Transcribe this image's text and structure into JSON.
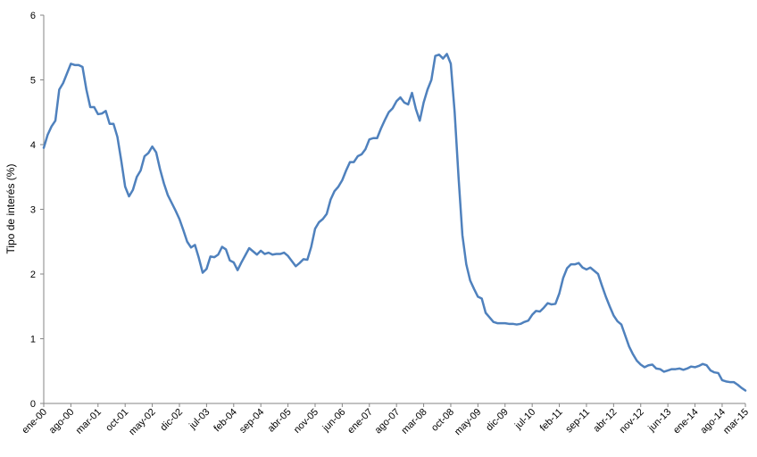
{
  "chart_data": {
    "type": "line",
    "title": "",
    "xlabel": "",
    "ylabel": "Tipo de interés (%)",
    "ylim": [
      0,
      6
    ],
    "y_ticks": [
      "0",
      "1",
      "2",
      "3",
      "4",
      "5",
      "6"
    ],
    "grid": false,
    "legend": "none",
    "line_color": "#4F81BD",
    "x_tick_labels": [
      "ene-00",
      "ago-00",
      "mar-01",
      "oct-01",
      "may-02",
      "dic-02",
      "jul-03",
      "feb-04",
      "sep-04",
      "abr-05",
      "nov-05",
      "jun-06",
      "ene-07",
      "ago-07",
      "mar-08",
      "oct-08",
      "may-09",
      "dic-09",
      "jul-10",
      "feb-11",
      "sep-11",
      "abr-12",
      "nov-12",
      "jun-13",
      "ene-14",
      "ago-14",
      "mar-15"
    ],
    "series": [
      {
        "values": [
          3.95,
          4.15,
          4.28,
          4.37,
          4.85,
          4.95,
          5.1,
          5.25,
          5.23,
          5.23,
          5.2,
          4.85,
          4.58,
          4.58,
          4.47,
          4.48,
          4.52,
          4.32,
          4.32,
          4.12,
          3.75,
          3.35,
          3.2,
          3.3,
          3.5,
          3.6,
          3.82,
          3.87,
          3.97,
          3.88,
          3.62,
          3.4,
          3.22,
          3.1,
          2.98,
          2.85,
          2.68,
          2.5,
          2.41,
          2.45,
          2.25,
          2.02,
          2.08,
          2.27,
          2.26,
          2.3,
          2.42,
          2.38,
          2.21,
          2.18,
          2.06,
          2.18,
          2.29,
          2.4,
          2.35,
          2.3,
          2.36,
          2.31,
          2.33,
          2.3,
          2.31,
          2.31,
          2.33,
          2.28,
          2.2,
          2.12,
          2.17,
          2.23,
          2.22,
          2.42,
          2.7,
          2.8,
          2.85,
          2.93,
          3.15,
          3.28,
          3.35,
          3.45,
          3.6,
          3.73,
          3.73,
          3.82,
          3.85,
          3.93,
          4.08,
          4.1,
          4.1,
          4.25,
          4.38,
          4.5,
          4.56,
          4.67,
          4.73,
          4.65,
          4.62,
          4.8,
          4.55,
          4.37,
          4.65,
          4.85,
          5.0,
          5.37,
          5.39,
          5.33,
          5.4,
          5.25,
          4.5,
          3.5,
          2.6,
          2.15,
          1.9,
          1.77,
          1.65,
          1.62,
          1.4,
          1.33,
          1.26,
          1.24,
          1.24,
          1.24,
          1.23,
          1.23,
          1.22,
          1.23,
          1.26,
          1.28,
          1.37,
          1.43,
          1.42,
          1.48,
          1.55,
          1.53,
          1.54,
          1.7,
          1.94,
          2.09,
          2.15,
          2.15,
          2.17,
          2.1,
          2.07,
          2.1,
          2.05,
          2.0,
          1.82,
          1.65,
          1.5,
          1.36,
          1.27,
          1.22,
          1.05,
          0.88,
          0.76,
          0.66,
          0.6,
          0.56,
          0.59,
          0.6,
          0.54,
          0.53,
          0.49,
          0.51,
          0.53,
          0.53,
          0.54,
          0.52,
          0.54,
          0.57,
          0.56,
          0.58,
          0.61,
          0.59,
          0.51,
          0.48,
          0.47,
          0.36,
          0.34,
          0.33,
          0.33,
          0.29,
          0.24,
          0.2
        ]
      }
    ]
  }
}
